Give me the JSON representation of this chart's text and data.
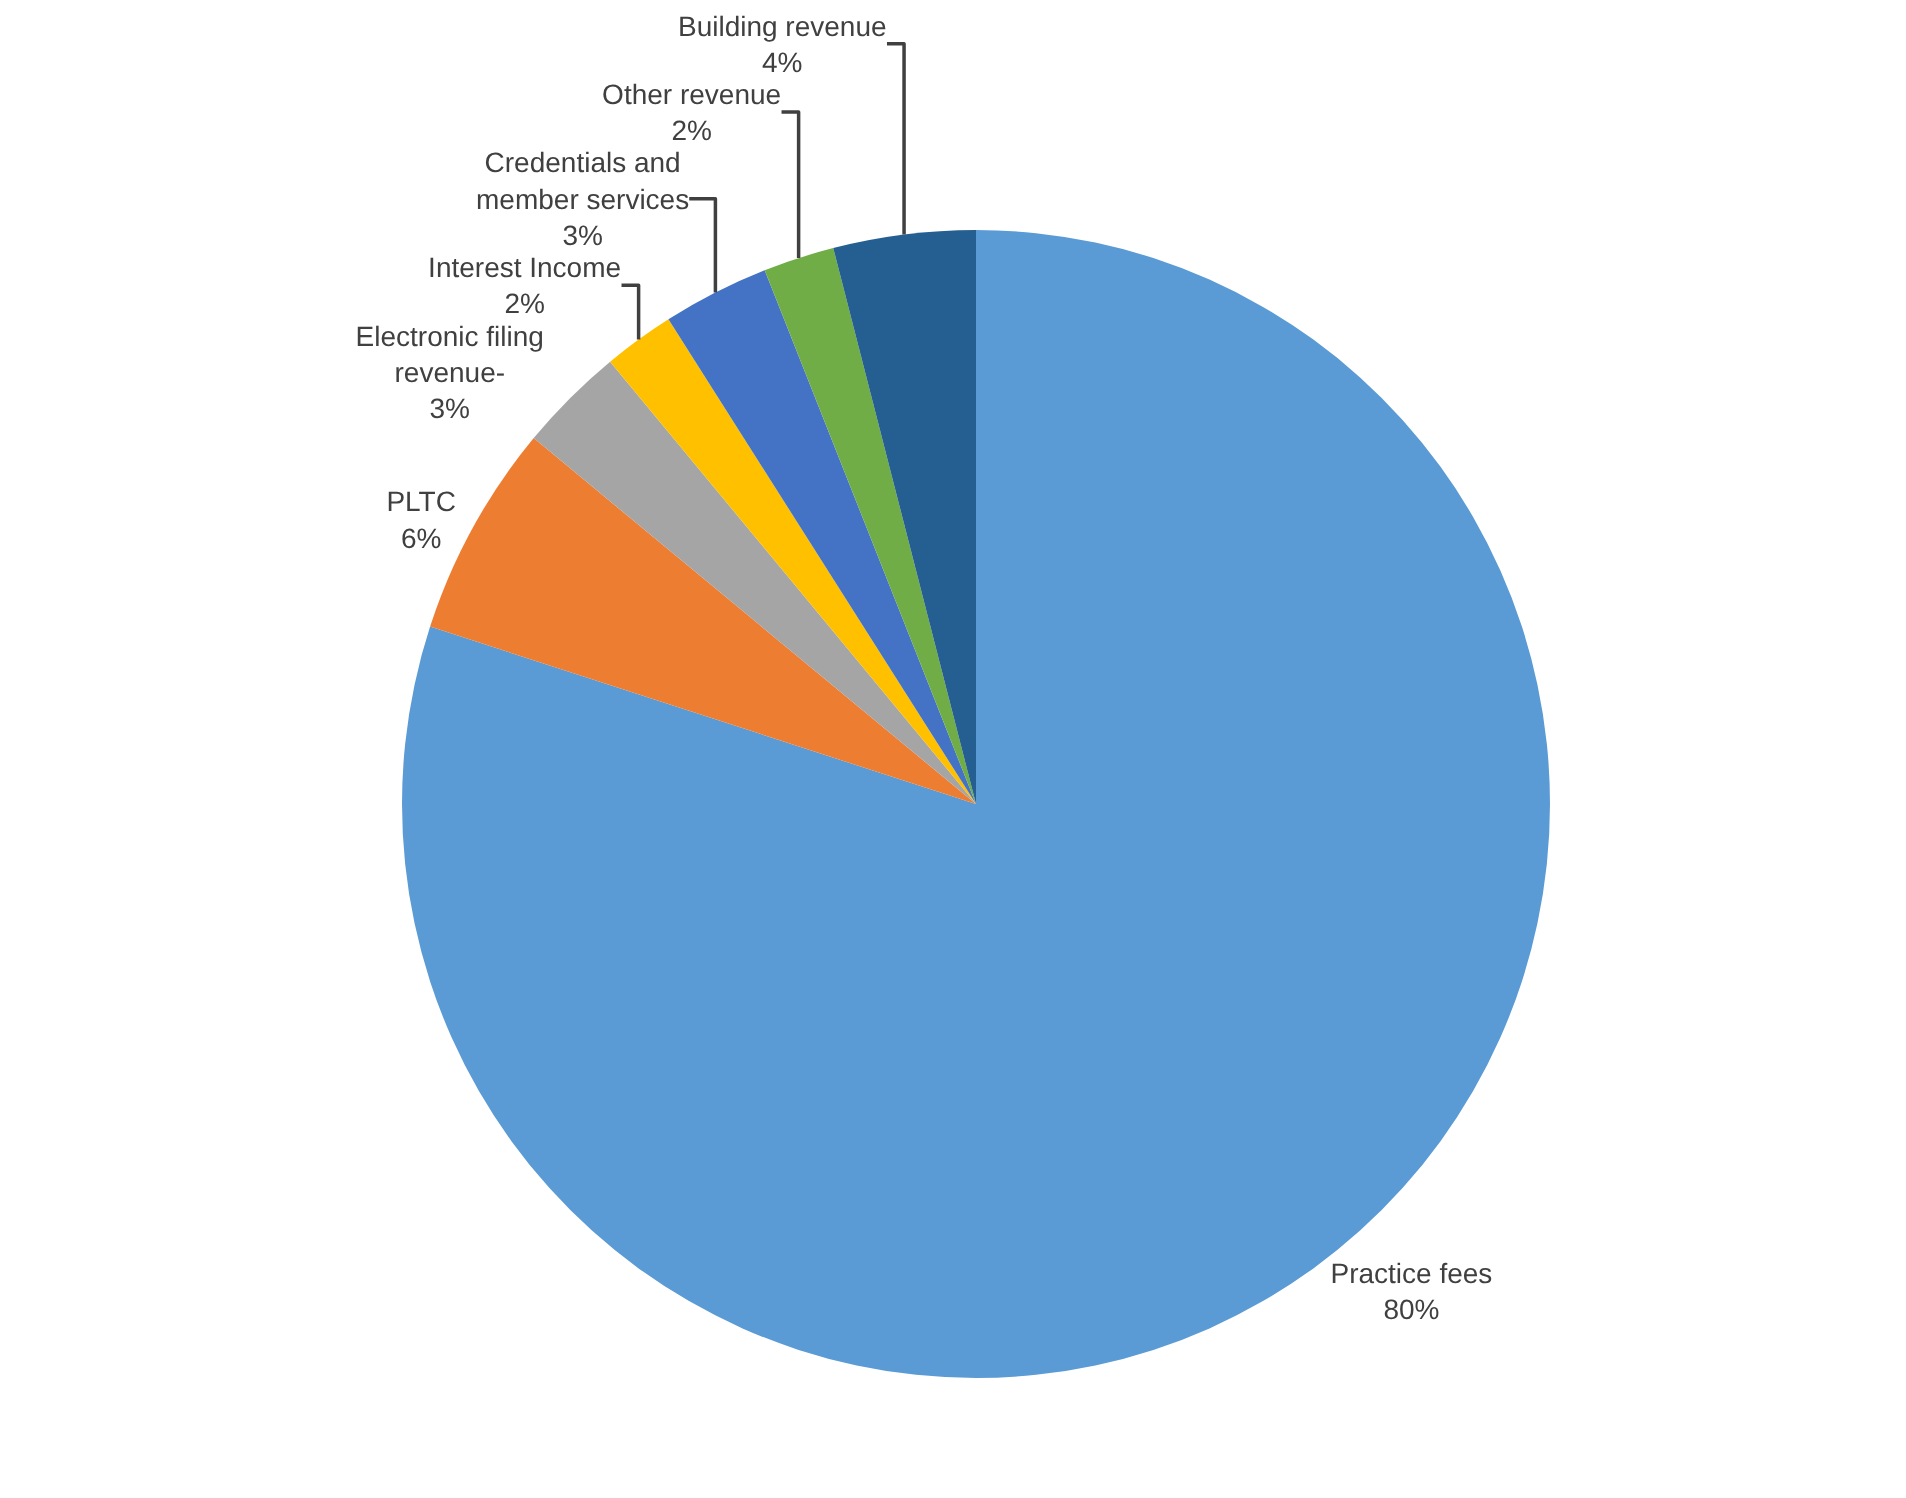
{
  "chart_data": {
    "type": "pie",
    "categories": [
      "Practice fees",
      "PLTC",
      "Electronic filing revenue-",
      "Interest Income",
      "Credentials and member services",
      "Other revenue",
      "Building revenue"
    ],
    "values": [
      80,
      6,
      3,
      2,
      3,
      2,
      4
    ],
    "value_labels": [
      "80%",
      "6%",
      "3%",
      "2%",
      "3%",
      "2%",
      "4%"
    ],
    "colors": [
      "#5b9bd5",
      "#ed7d31",
      "#a5a5a5",
      "#ffc000",
      "#4472c4",
      "#70ad47",
      "#255e91"
    ],
    "legend": false
  }
}
